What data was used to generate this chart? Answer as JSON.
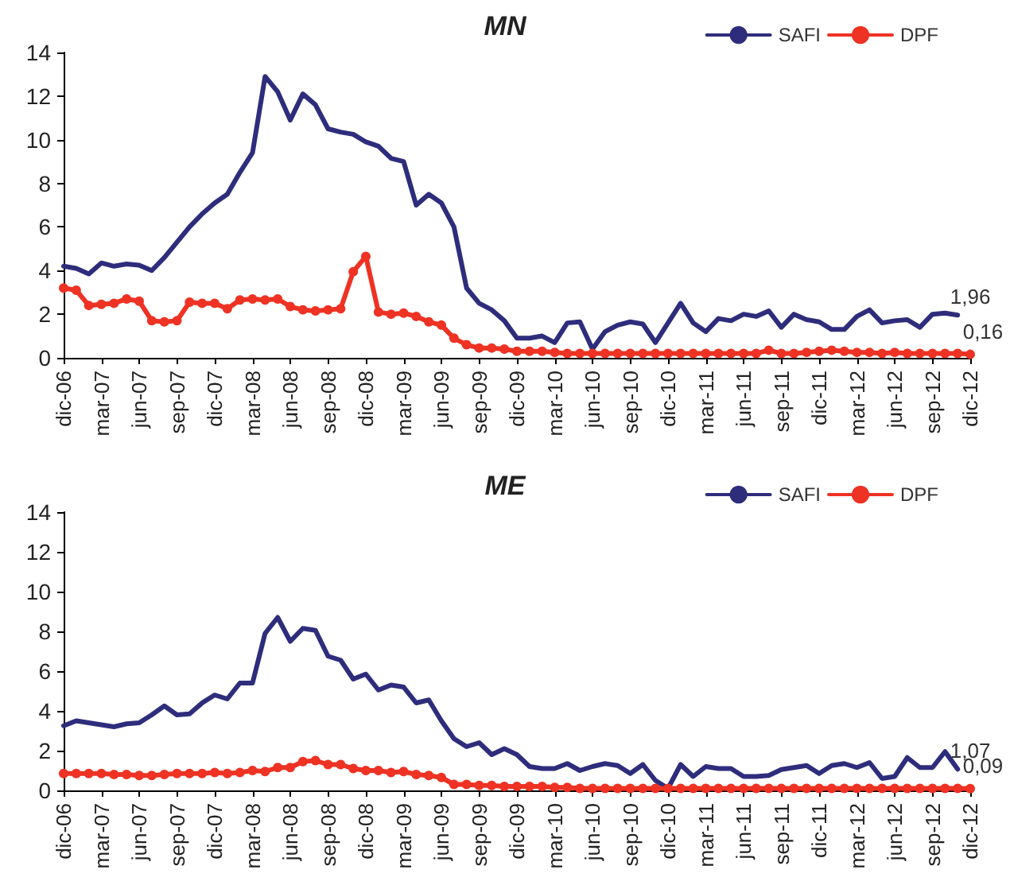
{
  "chart_data": [
    {
      "type": "line",
      "title": "MN",
      "categories": [
        "dic-06",
        null,
        null,
        "mar-07",
        null,
        null,
        "jun-07",
        null,
        null,
        "sep-07",
        null,
        null,
        "dic-07",
        null,
        null,
        "mar-08",
        null,
        null,
        "jun-08",
        null,
        null,
        "sep-08",
        null,
        null,
        "dic-08",
        null,
        null,
        "mar-09",
        null,
        null,
        "jun-09",
        null,
        null,
        "sep-09",
        null,
        null,
        "dic-09",
        null,
        null,
        "mar-10",
        null,
        null,
        "jun-10",
        null,
        null,
        "sep-10",
        null,
        null,
        "dic-10",
        null,
        null,
        "mar-11",
        null,
        null,
        "jun-11",
        null,
        null,
        "sep-11",
        null,
        null,
        "dic-11",
        null,
        null,
        "mar-12",
        null,
        null,
        "jun-12",
        null,
        null,
        "sep-12",
        null,
        null,
        "dic-12"
      ],
      "ylim": [
        0,
        14
      ],
      "yticks": [
        0,
        2,
        4,
        6,
        8,
        10,
        12,
        14
      ],
      "grid": false,
      "legend": "top right",
      "line_style": "solid",
      "series": [
        {
          "name": "SAFI",
          "color": "#2e2d7c",
          "marker": "none",
          "values": [
            4.2,
            4.1,
            3.85,
            4.35,
            4.2,
            4.3,
            4.25,
            4.0,
            4.6,
            5.3,
            6.0,
            6.6,
            7.1,
            7.5,
            8.5,
            9.4,
            12.9,
            12.2,
            10.9,
            12.1,
            11.6,
            10.5,
            10.35,
            10.25,
            9.9,
            9.7,
            9.15,
            9.0,
            7.0,
            7.5,
            7.1,
            6.0,
            3.2,
            2.5,
            2.2,
            1.7,
            0.9,
            0.9,
            1.0,
            0.7,
            1.6,
            1.65,
            0.4,
            1.2,
            1.5,
            1.65,
            1.55,
            0.7,
            1.6,
            2.5,
            1.6,
            1.2,
            1.8,
            1.7,
            2.0,
            1.9,
            2.15,
            1.4,
            2.0,
            1.75,
            1.65,
            1.3,
            1.3,
            1.9,
            2.2,
            1.6,
            1.7,
            1.75,
            1.4,
            2.0,
            2.05,
            1.96,
            null
          ],
          "value_labels": [
            null,
            null,
            null,
            null,
            null,
            null,
            null,
            null,
            null,
            null,
            null,
            null,
            null,
            null,
            null,
            null,
            null,
            null,
            null,
            null,
            null,
            null,
            null,
            null,
            null,
            null,
            null,
            null,
            null,
            null,
            null,
            null,
            null,
            null,
            null,
            null,
            null,
            null,
            null,
            null,
            null,
            null,
            null,
            null,
            null,
            null,
            null,
            null,
            null,
            null,
            null,
            null,
            null,
            null,
            null,
            null,
            null,
            null,
            null,
            null,
            null,
            null,
            null,
            null,
            null,
            null,
            null,
            null,
            null,
            null,
            null,
            "1,96",
            null
          ]
        },
        {
          "name": "DPF",
          "color": "#ee3224",
          "marker": "circle",
          "values": [
            3.2,
            3.1,
            2.4,
            2.45,
            2.5,
            2.7,
            2.6,
            1.7,
            1.65,
            1.7,
            2.55,
            2.5,
            2.5,
            2.25,
            2.65,
            2.7,
            2.65,
            2.7,
            2.35,
            2.2,
            2.15,
            2.2,
            2.25,
            3.95,
            4.65,
            2.1,
            2.0,
            2.05,
            1.9,
            1.65,
            1.5,
            0.9,
            0.6,
            0.45,
            0.45,
            0.4,
            0.3,
            0.3,
            0.3,
            0.25,
            0.2,
            0.2,
            0.2,
            0.2,
            0.2,
            0.2,
            0.2,
            0.2,
            0.2,
            0.2,
            0.2,
            0.2,
            0.2,
            0.2,
            0.2,
            0.2,
            0.35,
            0.2,
            0.2,
            0.25,
            0.3,
            0.35,
            0.3,
            0.25,
            0.25,
            0.2,
            0.25,
            0.2,
            0.2,
            0.2,
            0.2,
            0.2,
            0.16
          ],
          "value_labels": [
            null,
            null,
            null,
            null,
            null,
            null,
            null,
            null,
            null,
            null,
            null,
            null,
            null,
            null,
            null,
            null,
            null,
            null,
            null,
            null,
            null,
            null,
            null,
            null,
            null,
            null,
            null,
            null,
            null,
            null,
            null,
            null,
            null,
            null,
            null,
            null,
            null,
            null,
            null,
            null,
            null,
            null,
            null,
            null,
            null,
            null,
            null,
            null,
            null,
            null,
            null,
            null,
            null,
            null,
            null,
            null,
            null,
            null,
            null,
            null,
            null,
            null,
            null,
            null,
            null,
            null,
            null,
            null,
            null,
            null,
            null,
            null,
            "0,16"
          ]
        }
      ]
    },
    {
      "type": "line",
      "title": "ME",
      "categories": [
        "dic-06",
        null,
        null,
        "mar-07",
        null,
        null,
        "jun-07",
        null,
        null,
        "sep-07",
        null,
        null,
        "dic-07",
        null,
        null,
        "mar-08",
        null,
        null,
        "jun-08",
        null,
        null,
        "sep-08",
        null,
        null,
        "dic-08",
        null,
        null,
        "mar-09",
        null,
        null,
        "jun-09",
        null,
        null,
        "sep-09",
        null,
        null,
        "dic-09",
        null,
        null,
        "mar-10",
        null,
        null,
        "jun-10",
        null,
        null,
        "sep-10",
        null,
        null,
        "dic-10",
        null,
        null,
        "mar-11",
        null,
        null,
        "jun-11",
        null,
        null,
        "sep-11",
        null,
        null,
        "dic-11",
        null,
        null,
        "mar-12",
        null,
        null,
        "jun-12",
        null,
        null,
        "sep-12",
        null,
        null,
        "dic-12"
      ],
      "ylim": [
        0,
        14
      ],
      "yticks": [
        0,
        2,
        4,
        6,
        8,
        10,
        12,
        14
      ],
      "grid": false,
      "legend": "top right",
      "line_style": "solid",
      "series": [
        {
          "name": "SAFI",
          "color": "#2e2d7c",
          "marker": "none",
          "values": [
            3.25,
            3.5,
            3.4,
            3.3,
            3.2,
            3.35,
            3.4,
            3.8,
            4.25,
            3.8,
            3.85,
            4.4,
            4.8,
            4.6,
            5.4,
            5.4,
            7.9,
            8.7,
            7.5,
            8.15,
            8.05,
            6.75,
            6.55,
            5.6,
            5.85,
            5.05,
            5.3,
            5.2,
            4.4,
            4.55,
            3.5,
            2.6,
            2.2,
            2.4,
            1.8,
            2.1,
            1.8,
            1.2,
            1.1,
            1.1,
            1.35,
            1.0,
            1.2,
            1.35,
            1.25,
            0.85,
            1.3,
            0.5,
            0.1,
            1.3,
            0.7,
            1.2,
            1.1,
            1.1,
            0.7,
            0.7,
            0.75,
            1.05,
            1.15,
            1.25,
            0.85,
            1.25,
            1.35,
            1.15,
            1.4,
            0.6,
            0.7,
            1.65,
            1.15,
            1.15,
            1.95,
            1.07,
            null
          ],
          "value_labels": [
            null,
            null,
            null,
            null,
            null,
            null,
            null,
            null,
            null,
            null,
            null,
            null,
            null,
            null,
            null,
            null,
            null,
            null,
            null,
            null,
            null,
            null,
            null,
            null,
            null,
            null,
            null,
            null,
            null,
            null,
            null,
            null,
            null,
            null,
            null,
            null,
            null,
            null,
            null,
            null,
            null,
            null,
            null,
            null,
            null,
            null,
            null,
            null,
            null,
            null,
            null,
            null,
            null,
            null,
            null,
            null,
            null,
            null,
            null,
            null,
            null,
            null,
            null,
            null,
            null,
            null,
            null,
            null,
            null,
            null,
            null,
            "1,07",
            null
          ]
        },
        {
          "name": "DPF",
          "color": "#ee3224",
          "marker": "circle",
          "values": [
            0.85,
            0.85,
            0.85,
            0.85,
            0.8,
            0.8,
            0.75,
            0.75,
            0.8,
            0.85,
            0.85,
            0.85,
            0.9,
            0.85,
            0.9,
            1.0,
            0.95,
            1.15,
            1.15,
            1.45,
            1.5,
            1.3,
            1.3,
            1.1,
            1.0,
            1.0,
            0.9,
            0.95,
            0.8,
            0.75,
            0.65,
            0.3,
            0.3,
            0.25,
            0.25,
            0.2,
            0.2,
            0.2,
            0.2,
            0.15,
            0.15,
            0.1,
            0.1,
            0.1,
            0.1,
            0.1,
            0.1,
            0.1,
            0.1,
            0.1,
            0.1,
            0.1,
            0.1,
            0.1,
            0.1,
            0.1,
            0.1,
            0.1,
            0.1,
            0.1,
            0.1,
            0.1,
            0.1,
            0.1,
            0.1,
            0.1,
            0.1,
            0.1,
            0.1,
            0.1,
            0.1,
            0.1,
            0.09
          ],
          "value_labels": [
            null,
            null,
            null,
            null,
            null,
            null,
            null,
            null,
            null,
            null,
            null,
            null,
            null,
            null,
            null,
            null,
            null,
            null,
            null,
            null,
            null,
            null,
            null,
            null,
            null,
            null,
            null,
            null,
            null,
            null,
            null,
            null,
            null,
            null,
            null,
            null,
            null,
            null,
            null,
            null,
            null,
            null,
            null,
            null,
            null,
            null,
            null,
            null,
            null,
            null,
            null,
            null,
            null,
            null,
            null,
            null,
            null,
            null,
            null,
            null,
            null,
            null,
            null,
            null,
            null,
            null,
            null,
            null,
            null,
            null,
            null,
            null,
            "0,09"
          ]
        }
      ]
    }
  ]
}
